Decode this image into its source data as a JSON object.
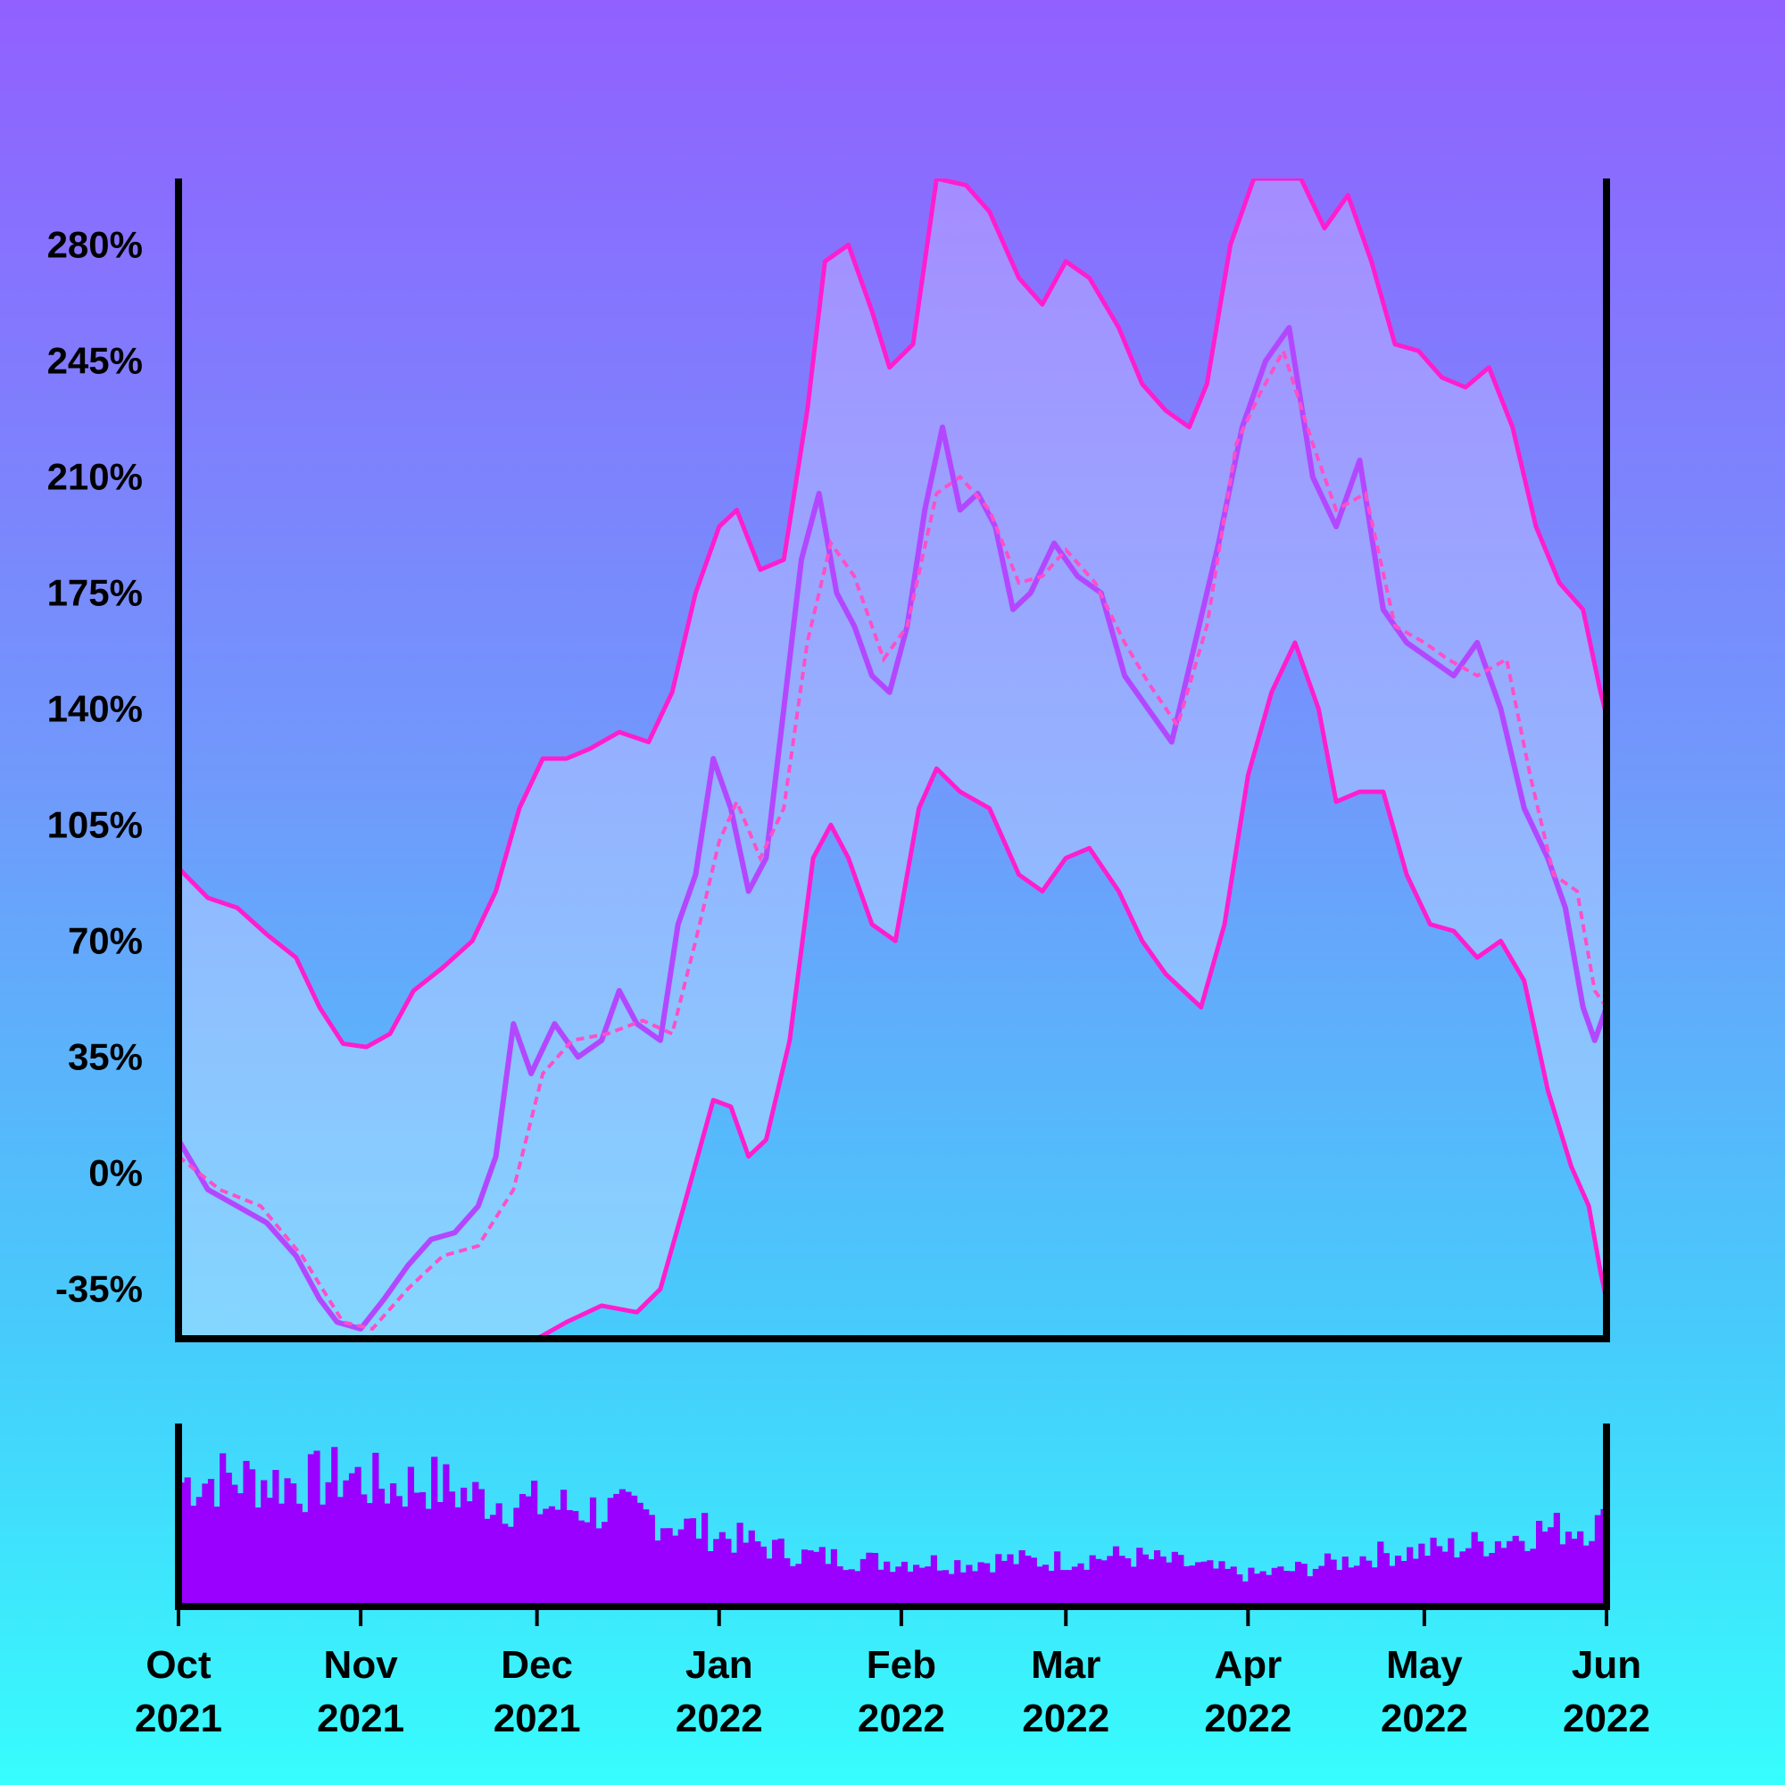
{
  "chart_data": {
    "type": "line",
    "x_range": [
      "2021-10-01",
      "2022-06-01"
    ],
    "ylim": [
      -50,
      300
    ],
    "y_ticks": [
      {
        "value": -35,
        "label": "-35%"
      },
      {
        "value": 0,
        "label": "0%"
      },
      {
        "value": 35,
        "label": "35%"
      },
      {
        "value": 70,
        "label": "70%"
      },
      {
        "value": 105,
        "label": "105%"
      },
      {
        "value": 140,
        "label": "140%"
      },
      {
        "value": 175,
        "label": "175%"
      },
      {
        "value": 210,
        "label": "210%"
      },
      {
        "value": 245,
        "label": "245%"
      },
      {
        "value": 280,
        "label": "280%"
      }
    ],
    "x_ticks": [
      {
        "date": "2021-10-01",
        "month": "Oct",
        "year": "2021"
      },
      {
        "date": "2021-11-01",
        "month": "Nov",
        "year": "2021"
      },
      {
        "date": "2021-12-01",
        "month": "Dec",
        "year": "2021"
      },
      {
        "date": "2022-01-01",
        "month": "Jan",
        "year": "2022"
      },
      {
        "date": "2022-02-01",
        "month": "Feb",
        "year": "2022"
      },
      {
        "date": "2022-03-01",
        "month": "Mar",
        "year": "2022"
      },
      {
        "date": "2022-04-01",
        "month": "Apr",
        "year": "2022"
      },
      {
        "date": "2022-05-01",
        "month": "May",
        "year": "2022"
      },
      {
        "date": "2022-06-01",
        "month": "Jun",
        "year": "2022"
      }
    ],
    "series": [
      {
        "role": "price",
        "points": [
          [
            "2021-10-01",
            10
          ],
          [
            "2021-10-06",
            -5
          ],
          [
            "2021-10-11",
            -10
          ],
          [
            "2021-10-16",
            -15
          ],
          [
            "2021-10-21",
            -25
          ],
          [
            "2021-10-25",
            -38
          ],
          [
            "2021-10-28",
            -45
          ],
          [
            "2021-11-01",
            -47
          ],
          [
            "2021-11-05",
            -38
          ],
          [
            "2021-11-09",
            -28
          ],
          [
            "2021-11-13",
            -20
          ],
          [
            "2021-11-17",
            -18
          ],
          [
            "2021-11-21",
            -10
          ],
          [
            "2021-11-24",
            5
          ],
          [
            "2021-11-27",
            45
          ],
          [
            "2021-11-30",
            30
          ],
          [
            "2021-12-04",
            45
          ],
          [
            "2021-12-08",
            35
          ],
          [
            "2021-12-12",
            40
          ],
          [
            "2021-12-15",
            55
          ],
          [
            "2021-12-18",
            45
          ],
          [
            "2021-12-22",
            40
          ],
          [
            "2021-12-25",
            75
          ],
          [
            "2021-12-28",
            90
          ],
          [
            "2021-12-31",
            125
          ],
          [
            "2022-01-03",
            110
          ],
          [
            "2022-01-06",
            85
          ],
          [
            "2022-01-09",
            95
          ],
          [
            "2022-01-12",
            140
          ],
          [
            "2022-01-15",
            185
          ],
          [
            "2022-01-18",
            205
          ],
          [
            "2022-01-21",
            175
          ],
          [
            "2022-01-24",
            165
          ],
          [
            "2022-01-27",
            150
          ],
          [
            "2022-01-30",
            145
          ],
          [
            "2022-02-02",
            165
          ],
          [
            "2022-02-05",
            200
          ],
          [
            "2022-02-08",
            225
          ],
          [
            "2022-02-11",
            200
          ],
          [
            "2022-02-14",
            205
          ],
          [
            "2022-02-17",
            195
          ],
          [
            "2022-02-20",
            170
          ],
          [
            "2022-02-23",
            175
          ],
          [
            "2022-02-27",
            190
          ],
          [
            "2022-03-03",
            180
          ],
          [
            "2022-03-07",
            175
          ],
          [
            "2022-03-11",
            150
          ],
          [
            "2022-03-15",
            140
          ],
          [
            "2022-03-19",
            130
          ],
          [
            "2022-03-23",
            160
          ],
          [
            "2022-03-27",
            190
          ],
          [
            "2022-03-31",
            225
          ],
          [
            "2022-04-04",
            245
          ],
          [
            "2022-04-08",
            255
          ],
          [
            "2022-04-12",
            210
          ],
          [
            "2022-04-16",
            195
          ],
          [
            "2022-04-20",
            215
          ],
          [
            "2022-04-24",
            170
          ],
          [
            "2022-04-28",
            160
          ],
          [
            "2022-05-02",
            155
          ],
          [
            "2022-05-06",
            150
          ],
          [
            "2022-05-10",
            160
          ],
          [
            "2022-05-14",
            140
          ],
          [
            "2022-05-18",
            110
          ],
          [
            "2022-05-22",
            95
          ],
          [
            "2022-05-25",
            80
          ],
          [
            "2022-05-28",
            50
          ],
          [
            "2022-05-30",
            40
          ],
          [
            "2022-06-01",
            50
          ]
        ]
      },
      {
        "role": "moving-average",
        "points": [
          [
            "2021-10-01",
            5
          ],
          [
            "2021-10-08",
            -5
          ],
          [
            "2021-10-15",
            -10
          ],
          [
            "2021-10-22",
            -25
          ],
          [
            "2021-10-29",
            -45
          ],
          [
            "2021-11-03",
            -47
          ],
          [
            "2021-11-09",
            -35
          ],
          [
            "2021-11-15",
            -25
          ],
          [
            "2021-11-21",
            -22
          ],
          [
            "2021-11-27",
            -5
          ],
          [
            "2021-12-02",
            30
          ],
          [
            "2021-12-07",
            40
          ],
          [
            "2021-12-13",
            42
          ],
          [
            "2021-12-19",
            46
          ],
          [
            "2021-12-24",
            42
          ],
          [
            "2021-12-28",
            70
          ],
          [
            "2022-01-01",
            100
          ],
          [
            "2022-01-04",
            112
          ],
          [
            "2022-01-08",
            95
          ],
          [
            "2022-01-12",
            110
          ],
          [
            "2022-01-16",
            160
          ],
          [
            "2022-01-20",
            190
          ],
          [
            "2022-01-24",
            180
          ],
          [
            "2022-01-29",
            155
          ],
          [
            "2022-02-02",
            165
          ],
          [
            "2022-02-07",
            205
          ],
          [
            "2022-02-11",
            210
          ],
          [
            "2022-02-16",
            200
          ],
          [
            "2022-02-21",
            178
          ],
          [
            "2022-02-25",
            180
          ],
          [
            "2022-03-01",
            188
          ],
          [
            "2022-03-06",
            178
          ],
          [
            "2022-03-11",
            160
          ],
          [
            "2022-03-15",
            148
          ],
          [
            "2022-03-20",
            135
          ],
          [
            "2022-03-25",
            165
          ],
          [
            "2022-03-30",
            220
          ],
          [
            "2022-04-03",
            235
          ],
          [
            "2022-04-07",
            248
          ],
          [
            "2022-04-12",
            220
          ],
          [
            "2022-04-16",
            200
          ],
          [
            "2022-04-21",
            205
          ],
          [
            "2022-04-26",
            165
          ],
          [
            "2022-05-01",
            160
          ],
          [
            "2022-05-05",
            155
          ],
          [
            "2022-05-10",
            150
          ],
          [
            "2022-05-15",
            155
          ],
          [
            "2022-05-19",
            120
          ],
          [
            "2022-05-23",
            90
          ],
          [
            "2022-05-27",
            85
          ],
          [
            "2022-05-30",
            55
          ],
          [
            "2022-06-01",
            50
          ]
        ]
      },
      {
        "role": "upper-band",
        "points": [
          [
            "2021-10-01",
            92
          ],
          [
            "2021-10-06",
            83
          ],
          [
            "2021-10-11",
            80
          ],
          [
            "2021-10-16",
            72
          ],
          [
            "2021-10-21",
            65
          ],
          [
            "2021-10-25",
            50
          ],
          [
            "2021-10-29",
            39
          ],
          [
            "2021-11-02",
            38
          ],
          [
            "2021-11-06",
            42
          ],
          [
            "2021-11-10",
            55
          ],
          [
            "2021-11-15",
            62
          ],
          [
            "2021-11-20",
            70
          ],
          [
            "2021-11-24",
            85
          ],
          [
            "2021-11-28",
            110
          ],
          [
            "2021-12-02",
            125
          ],
          [
            "2021-12-06",
            125
          ],
          [
            "2021-12-10",
            128
          ],
          [
            "2021-12-15",
            133
          ],
          [
            "2021-12-20",
            130
          ],
          [
            "2021-12-24",
            145
          ],
          [
            "2021-12-28",
            175
          ],
          [
            "2022-01-01",
            195
          ],
          [
            "2022-01-04",
            200
          ],
          [
            "2022-01-08",
            182
          ],
          [
            "2022-01-12",
            185
          ],
          [
            "2022-01-16",
            230
          ],
          [
            "2022-01-19",
            275
          ],
          [
            "2022-01-23",
            280
          ],
          [
            "2022-01-27",
            260
          ],
          [
            "2022-01-30",
            243
          ],
          [
            "2022-02-03",
            250
          ],
          [
            "2022-02-07",
            300
          ],
          [
            "2022-02-12",
            298
          ],
          [
            "2022-02-16",
            290
          ],
          [
            "2022-02-21",
            270
          ],
          [
            "2022-02-25",
            262
          ],
          [
            "2022-03-01",
            275
          ],
          [
            "2022-03-05",
            270
          ],
          [
            "2022-03-10",
            255
          ],
          [
            "2022-03-14",
            238
          ],
          [
            "2022-03-18",
            230
          ],
          [
            "2022-03-22",
            225
          ],
          [
            "2022-03-25",
            238
          ],
          [
            "2022-03-29",
            280
          ],
          [
            "2022-04-02",
            300
          ],
          [
            "2022-04-10",
            300
          ],
          [
            "2022-04-14",
            285
          ],
          [
            "2022-04-18",
            295
          ],
          [
            "2022-04-22",
            275
          ],
          [
            "2022-04-26",
            250
          ],
          [
            "2022-04-30",
            248
          ],
          [
            "2022-05-04",
            240
          ],
          [
            "2022-05-08",
            237
          ],
          [
            "2022-05-12",
            243
          ],
          [
            "2022-05-16",
            225
          ],
          [
            "2022-05-20",
            195
          ],
          [
            "2022-05-24",
            178
          ],
          [
            "2022-05-28",
            170
          ],
          [
            "2022-05-31",
            145
          ],
          [
            "2022-06-01",
            138
          ]
        ]
      },
      {
        "role": "lower-band",
        "points": [
          [
            "2021-12-01",
            -50
          ],
          [
            "2021-12-06",
            -45
          ],
          [
            "2021-12-12",
            -40
          ],
          [
            "2021-12-18",
            -42
          ],
          [
            "2021-12-22",
            -35
          ],
          [
            "2021-12-26",
            -10
          ],
          [
            "2021-12-31",
            22
          ],
          [
            "2022-01-03",
            20
          ],
          [
            "2022-01-06",
            5
          ],
          [
            "2022-01-09",
            10
          ],
          [
            "2022-01-13",
            40
          ],
          [
            "2022-01-17",
            95
          ],
          [
            "2022-01-20",
            105
          ],
          [
            "2022-01-23",
            95
          ],
          [
            "2022-01-27",
            75
          ],
          [
            "2022-01-31",
            70
          ],
          [
            "2022-02-04",
            110
          ],
          [
            "2022-02-07",
            122
          ],
          [
            "2022-02-11",
            115
          ],
          [
            "2022-02-16",
            110
          ],
          [
            "2022-02-21",
            90
          ],
          [
            "2022-02-25",
            85
          ],
          [
            "2022-03-01",
            95
          ],
          [
            "2022-03-05",
            98
          ],
          [
            "2022-03-10",
            85
          ],
          [
            "2022-03-14",
            70
          ],
          [
            "2022-03-18",
            60
          ],
          [
            "2022-03-21",
            55
          ],
          [
            "2022-03-24",
            50
          ],
          [
            "2022-03-28",
            75
          ],
          [
            "2022-04-01",
            120
          ],
          [
            "2022-04-05",
            145
          ],
          [
            "2022-04-09",
            160
          ],
          [
            "2022-04-13",
            140
          ],
          [
            "2022-04-16",
            112
          ],
          [
            "2022-04-20",
            115
          ],
          [
            "2022-04-24",
            115
          ],
          [
            "2022-04-28",
            90
          ],
          [
            "2022-05-02",
            75
          ],
          [
            "2022-05-06",
            73
          ],
          [
            "2022-05-10",
            65
          ],
          [
            "2022-05-14",
            70
          ],
          [
            "2022-05-18",
            58
          ],
          [
            "2022-05-22",
            25
          ],
          [
            "2022-05-26",
            2
          ],
          [
            "2022-05-29",
            -10
          ],
          [
            "2022-05-31",
            -30
          ],
          [
            "2022-06-01",
            -38
          ]
        ]
      }
    ],
    "volume_series": {
      "points": [
        [
          "2021-10-01",
          0.72
        ],
        [
          "2021-10-08",
          0.74
        ],
        [
          "2021-10-15",
          0.73
        ],
        [
          "2021-10-22",
          0.71
        ],
        [
          "2021-10-29",
          0.76
        ],
        [
          "2021-11-05",
          0.69
        ],
        [
          "2021-11-12",
          0.72
        ],
        [
          "2021-11-19",
          0.64
        ],
        [
          "2021-11-26",
          0.6
        ],
        [
          "2021-12-03",
          0.58
        ],
        [
          "2021-12-10",
          0.56
        ],
        [
          "2021-12-17",
          0.54
        ],
        [
          "2021-12-24",
          0.48
        ],
        [
          "2021-12-31",
          0.42
        ],
        [
          "2022-01-07",
          0.36
        ],
        [
          "2022-01-14",
          0.3
        ],
        [
          "2022-01-21",
          0.28
        ],
        [
          "2022-01-28",
          0.26
        ],
        [
          "2022-02-04",
          0.26
        ],
        [
          "2022-02-11",
          0.25
        ],
        [
          "2022-02-18",
          0.27
        ],
        [
          "2022-02-25",
          0.26
        ],
        [
          "2022-03-04",
          0.28
        ],
        [
          "2022-03-11",
          0.29
        ],
        [
          "2022-03-18",
          0.26
        ],
        [
          "2022-03-25",
          0.22
        ],
        [
          "2022-04-01",
          0.18
        ],
        [
          "2022-04-08",
          0.21
        ],
        [
          "2022-04-15",
          0.25
        ],
        [
          "2022-04-22",
          0.3
        ],
        [
          "2022-04-29",
          0.32
        ],
        [
          "2022-05-06",
          0.34
        ],
        [
          "2022-05-13",
          0.38
        ],
        [
          "2022-05-20",
          0.44
        ],
        [
          "2022-05-27",
          0.46
        ],
        [
          "2022-06-01",
          0.48
        ]
      ]
    }
  }
}
